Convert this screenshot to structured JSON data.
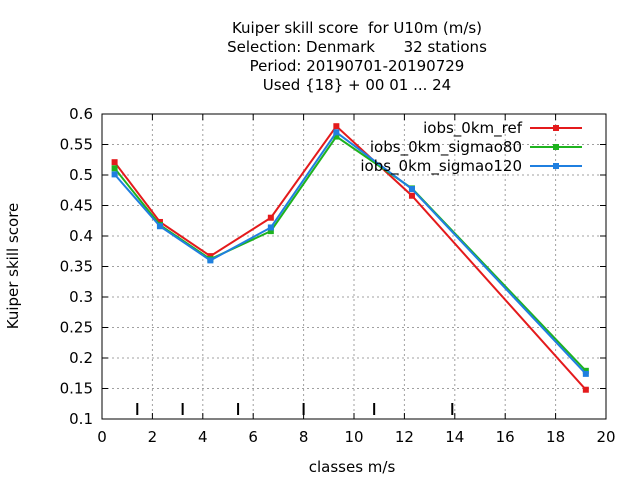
{
  "chart_data": {
    "type": "line",
    "title_lines": [
      "Kuiper skill score  for U10m (m/s)",
      "Selection: Denmark      32 stations",
      "Period: 20190701-20190729",
      "Used {18} + 00 01 ... 24"
    ],
    "xlabel": "classes m/s",
    "ylabel": "Kuiper skill score",
    "xlim": [
      0,
      20
    ],
    "ylim": [
      0.1,
      0.6
    ],
    "xticks": [
      0,
      2,
      4,
      6,
      8,
      10,
      12,
      14,
      16,
      18,
      20
    ],
    "yticks": [
      0.1,
      0.15,
      0.2,
      0.25,
      0.3,
      0.35,
      0.4,
      0.45,
      0.5,
      0.55,
      0.6
    ],
    "grid": true,
    "legend_position": "top-right",
    "class_boundaries": [
      1.4,
      3.2,
      5.4,
      8.0,
      10.8,
      13.9
    ],
    "series": [
      {
        "name": "iobs_0km_ref",
        "color": "#e41a1c",
        "x": [
          0.5,
          2.3,
          4.3,
          6.7,
          9.3,
          12.3,
          19.2
        ],
        "y": [
          0.521,
          0.423,
          0.367,
          0.43,
          0.58,
          0.466,
          0.148
        ]
      },
      {
        "name": "iobs_0km_sigmao80",
        "color": "#1eb31e",
        "x": [
          0.5,
          2.3,
          4.3,
          6.7,
          9.3,
          12.3,
          19.2
        ],
        "y": [
          0.511,
          0.418,
          0.362,
          0.408,
          0.563,
          0.478,
          0.179
        ]
      },
      {
        "name": "iobs_0km_sigmao120",
        "color": "#1f7fe0",
        "x": [
          0.5,
          2.3,
          4.3,
          6.7,
          9.3,
          12.3,
          19.2
        ],
        "y": [
          0.501,
          0.416,
          0.36,
          0.414,
          0.57,
          0.477,
          0.174
        ]
      }
    ]
  }
}
